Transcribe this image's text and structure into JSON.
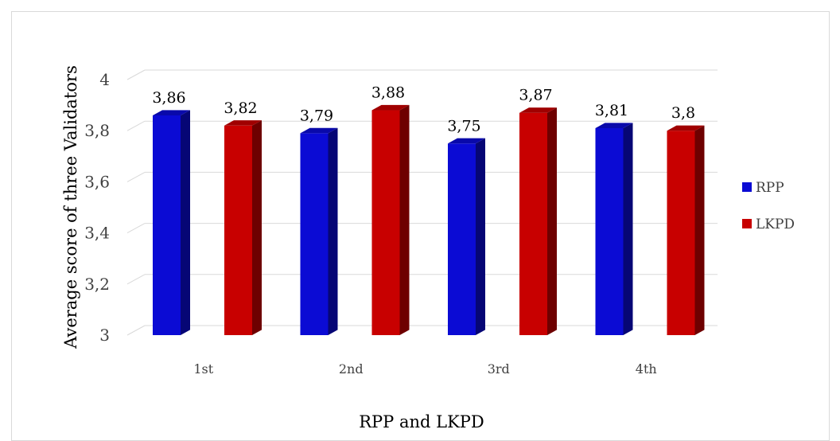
{
  "chart_data": {
    "type": "bar",
    "categories": [
      "1st",
      "2nd",
      "3rd",
      "4th"
    ],
    "series": [
      {
        "name": "RPP",
        "values": [
          3.86,
          3.79,
          3.75,
          3.81
        ],
        "labels": [
          "3,86",
          "3,79",
          "3,75",
          "3,81"
        ],
        "color": "#0b0bd4"
      },
      {
        "name": "LKPD",
        "values": [
          3.82,
          3.88,
          3.87,
          3.8
        ],
        "labels": [
          "3,82",
          "3,88",
          "3,87",
          "3,8"
        ],
        "color": "#c80000"
      }
    ],
    "title": "",
    "xlabel": "RPP and LKPD",
    "ylabel": "Average score of three Validators",
    "ylim": [
      3,
      4
    ],
    "yticks": [
      3,
      3.2,
      3.4,
      3.6,
      3.8,
      4
    ],
    "ytick_labels": [
      "3",
      "3,2",
      "3,4",
      "3,6",
      "3,8",
      "4"
    ],
    "grid": true,
    "legend_position": "right",
    "style": "3d-column"
  }
}
